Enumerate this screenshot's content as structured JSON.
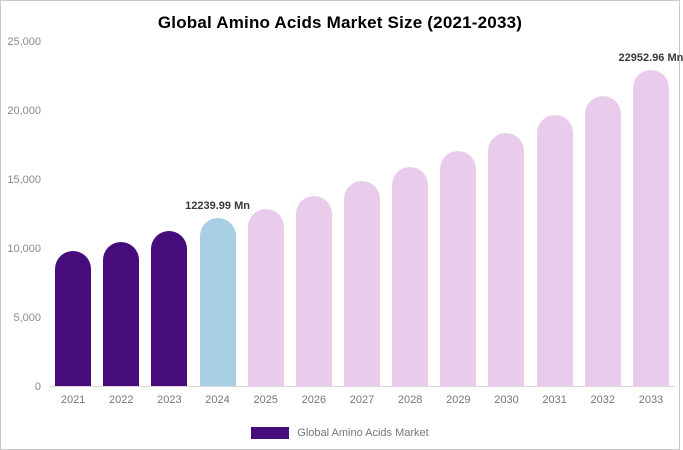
{
  "chart_data": {
    "type": "bar",
    "title": "Global Amino Acids Market Size (2021-2033)",
    "categories": [
      "2021",
      "2022",
      "2023",
      "2024",
      "2025",
      "2026",
      "2027",
      "2028",
      "2029",
      "2030",
      "2031",
      "2032",
      "2033"
    ],
    "values": [
      9800,
      10450,
      11250,
      12239.99,
      12900,
      13800,
      14900,
      15950,
      17050,
      18400,
      19700,
      21100,
      22952.96
    ],
    "bar_colors": [
      "#470c7c",
      "#470c7c",
      "#470c7c",
      "#a9cfe4",
      "#e9ccec",
      "#e9ccec",
      "#e9ccec",
      "#e9ccec",
      "#e9ccec",
      "#e9ccec",
      "#e9ccec",
      "#e9ccec",
      "#e9ccec"
    ],
    "annotations": [
      {
        "index": 3,
        "text": "12239.99 Mn"
      },
      {
        "index": 12,
        "text": "22952.96 Mn"
      }
    ],
    "ylim": [
      0,
      25000
    ],
    "y_ticks": [
      "0",
      "5,000",
      "10,000",
      "15,000",
      "20,000",
      "25,000"
    ],
    "xlabel": "",
    "ylabel": "",
    "grid": false,
    "legend_position": "bottom",
    "legend": [
      {
        "label": "Global Amino Acids Market",
        "color": "#470c7c"
      }
    ]
  }
}
